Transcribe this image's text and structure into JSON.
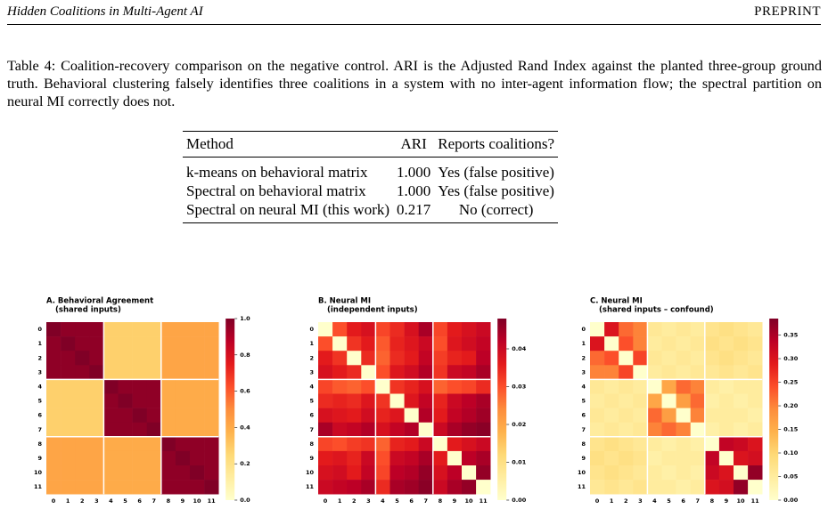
{
  "header": {
    "left": "Hidden Coalitions in Multi-Agent AI",
    "right": "PREPRINT"
  },
  "table": {
    "caption": "Table 4: Coalition-recovery comparison on the negative control. ARI is the Adjusted Rand Index against the planted three-group ground truth. Behavioral clustering falsely identifies three coalitions in a system with no inter-agent information flow; the spectral partition on neural MI correctly does not.",
    "columns": [
      "Method",
      "ARI",
      "Reports coalitions?"
    ],
    "rows": [
      [
        "k-means on behavioral matrix",
        "1.000",
        "Yes (false positive)"
      ],
      [
        "Spectral on behavioral matrix",
        "1.000",
        "Yes (false positive)"
      ],
      [
        "Spectral on neural MI (this work)",
        "0.217",
        "No (correct)"
      ]
    ]
  },
  "chart_data": [
    {
      "type": "heatmap",
      "title": "A. Behavioral Agreement",
      "subtitle": "(shared inputs)",
      "colormap": "YlOrRd",
      "categories": [
        0,
        1,
        2,
        3,
        4,
        5,
        6,
        7,
        8,
        9,
        10,
        11
      ],
      "clim": [
        0,
        1.0
      ],
      "cticks": [
        {
          "value": 0,
          "label": "0.0"
        },
        0.2,
        0.4,
        0.6,
        0.8,
        {
          "value": 1.0,
          "label": "1.0"
        }
      ],
      "values": [
        [
          1.0,
          0.97,
          0.97,
          0.97,
          0.28,
          0.28,
          0.28,
          0.28,
          0.42,
          0.42,
          0.42,
          0.42
        ],
        [
          0.97,
          1.0,
          0.97,
          0.97,
          0.28,
          0.28,
          0.28,
          0.28,
          0.42,
          0.42,
          0.42,
          0.42
        ],
        [
          0.97,
          0.97,
          1.0,
          0.97,
          0.28,
          0.28,
          0.28,
          0.28,
          0.42,
          0.42,
          0.42,
          0.42
        ],
        [
          0.97,
          0.97,
          0.97,
          1.0,
          0.28,
          0.28,
          0.28,
          0.28,
          0.42,
          0.42,
          0.42,
          0.42
        ],
        [
          0.28,
          0.28,
          0.28,
          0.28,
          1.0,
          0.97,
          0.97,
          0.97,
          0.4,
          0.4,
          0.4,
          0.4
        ],
        [
          0.28,
          0.28,
          0.28,
          0.28,
          0.97,
          1.0,
          0.97,
          0.97,
          0.4,
          0.4,
          0.4,
          0.4
        ],
        [
          0.28,
          0.28,
          0.28,
          0.28,
          0.97,
          0.97,
          1.0,
          0.97,
          0.4,
          0.4,
          0.4,
          0.4
        ],
        [
          0.28,
          0.28,
          0.28,
          0.28,
          0.97,
          0.97,
          0.97,
          1.0,
          0.4,
          0.4,
          0.4,
          0.4
        ],
        [
          0.42,
          0.42,
          0.42,
          0.42,
          0.4,
          0.4,
          0.4,
          0.4,
          1.0,
          0.97,
          0.97,
          0.97
        ],
        [
          0.42,
          0.42,
          0.42,
          0.42,
          0.4,
          0.4,
          0.4,
          0.4,
          0.97,
          1.0,
          0.97,
          0.97
        ],
        [
          0.42,
          0.42,
          0.42,
          0.42,
          0.4,
          0.4,
          0.4,
          0.4,
          0.97,
          0.97,
          1.0,
          0.97
        ],
        [
          0.42,
          0.42,
          0.42,
          0.42,
          0.4,
          0.4,
          0.4,
          0.4,
          0.97,
          0.97,
          0.97,
          1.0
        ]
      ]
    },
    {
      "type": "heatmap",
      "title": "B. Neural MI",
      "subtitle": "(independent inputs)",
      "colormap": "YlOrRd",
      "categories": [
        0,
        1,
        2,
        3,
        4,
        5,
        6,
        7,
        8,
        9,
        10,
        11
      ],
      "clim": [
        0,
        0.048
      ],
      "cticks": [
        {
          "value": 0,
          "label": "0.00"
        },
        0.01,
        0.02,
        0.03,
        0.04
      ],
      "values": [
        [
          0,
          0.03,
          0.036,
          0.038,
          0.031,
          0.034,
          0.038,
          0.044,
          0.031,
          0.036,
          0.038,
          0.04
        ],
        [
          0.03,
          0,
          0.033,
          0.036,
          0.029,
          0.035,
          0.037,
          0.04,
          0.03,
          0.037,
          0.039,
          0.041
        ],
        [
          0.036,
          0.033,
          0,
          0.034,
          0.028,
          0.034,
          0.036,
          0.041,
          0.032,
          0.035,
          0.036,
          0.042
        ],
        [
          0.038,
          0.036,
          0.034,
          0,
          0.03,
          0.037,
          0.039,
          0.043,
          0.033,
          0.04,
          0.041,
          0.044
        ],
        [
          0.031,
          0.029,
          0.028,
          0.03,
          0,
          0.033,
          0.035,
          0.038,
          0.028,
          0.03,
          0.031,
          0.034
        ],
        [
          0.034,
          0.035,
          0.034,
          0.037,
          0.033,
          0,
          0.037,
          0.041,
          0.035,
          0.04,
          0.042,
          0.044
        ],
        [
          0.038,
          0.037,
          0.036,
          0.039,
          0.035,
          0.037,
          0,
          0.043,
          0.036,
          0.041,
          0.043,
          0.045
        ],
        [
          0.044,
          0.04,
          0.041,
          0.043,
          0.038,
          0.041,
          0.043,
          0,
          0.04,
          0.044,
          0.046,
          0.047
        ],
        [
          0.031,
          0.03,
          0.032,
          0.033,
          0.028,
          0.035,
          0.036,
          0.04,
          0,
          0.036,
          0.038,
          0.04
        ],
        [
          0.036,
          0.037,
          0.035,
          0.04,
          0.03,
          0.04,
          0.041,
          0.044,
          0.036,
          0,
          0.042,
          0.044
        ],
        [
          0.038,
          0.039,
          0.036,
          0.041,
          0.031,
          0.042,
          0.043,
          0.046,
          0.038,
          0.042,
          0,
          0.046
        ],
        [
          0.04,
          0.041,
          0.042,
          0.044,
          0.034,
          0.044,
          0.045,
          0.047,
          0.04,
          0.044,
          0.046,
          0
        ]
      ]
    },
    {
      "type": "heatmap",
      "title": "C. Neural MI",
      "subtitle": "(shared inputs – confound)",
      "colormap": "YlOrRd",
      "categories": [
        0,
        1,
        2,
        3,
        4,
        5,
        6,
        7,
        8,
        9,
        10,
        11
      ],
      "clim": [
        0,
        0.385
      ],
      "cticks": [
        {
          "value": 0,
          "label": "0.00"
        },
        0.05,
        {
          "value": 0.1,
          "label": "0.10"
        },
        0.15,
        {
          "value": 0.2,
          "label": "0.20"
        },
        0.25,
        {
          "value": 0.3,
          "label": "0.30"
        },
        0.35
      ],
      "values": [
        [
          0,
          0.3,
          0.22,
          0.2,
          0.06,
          0.05,
          0.06,
          0.05,
          0.07,
          0.08,
          0.07,
          0.06
        ],
        [
          0.3,
          0,
          0.24,
          0.2,
          0.05,
          0.06,
          0.05,
          0.06,
          0.08,
          0.07,
          0.08,
          0.07
        ],
        [
          0.22,
          0.24,
          0,
          0.25,
          0.06,
          0.05,
          0.06,
          0.05,
          0.07,
          0.08,
          0.07,
          0.06
        ],
        [
          0.2,
          0.2,
          0.25,
          0,
          0.05,
          0.06,
          0.05,
          0.06,
          0.06,
          0.07,
          0.06,
          0.07
        ],
        [
          0.06,
          0.05,
          0.06,
          0.05,
          0,
          0.16,
          0.22,
          0.2,
          0.05,
          0.04,
          0.05,
          0.05
        ],
        [
          0.05,
          0.06,
          0.05,
          0.06,
          0.16,
          0,
          0.17,
          0.22,
          0.04,
          0.05,
          0.04,
          0.05
        ],
        [
          0.06,
          0.05,
          0.06,
          0.05,
          0.22,
          0.17,
          0,
          0.2,
          0.05,
          0.05,
          0.05,
          0.04
        ],
        [
          0.05,
          0.06,
          0.05,
          0.06,
          0.2,
          0.22,
          0.2,
          0,
          0.04,
          0.05,
          0.04,
          0.05
        ],
        [
          0.07,
          0.08,
          0.07,
          0.06,
          0.05,
          0.04,
          0.05,
          0.04,
          0,
          0.33,
          0.32,
          0.3
        ],
        [
          0.08,
          0.07,
          0.08,
          0.07,
          0.04,
          0.05,
          0.05,
          0.05,
          0.33,
          0,
          0.3,
          0.31
        ],
        [
          0.07,
          0.08,
          0.07,
          0.06,
          0.05,
          0.04,
          0.05,
          0.04,
          0.32,
          0.3,
          0,
          0.37
        ],
        [
          0.06,
          0.07,
          0.06,
          0.07,
          0.05,
          0.05,
          0.04,
          0.05,
          0.3,
          0.31,
          0.37,
          0
        ]
      ]
    }
  ]
}
